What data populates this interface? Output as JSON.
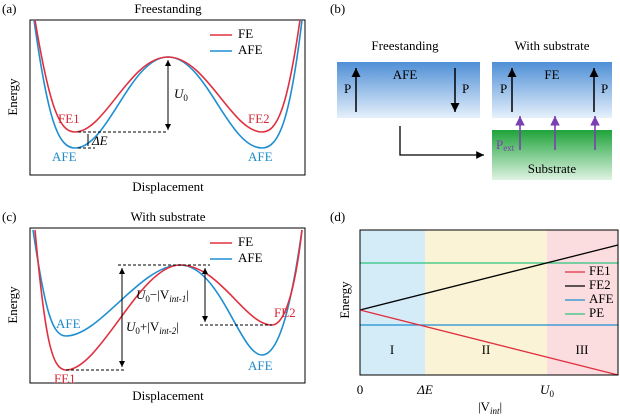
{
  "panel_a": {
    "label": "(a)",
    "title": "Freestanding",
    "legend": [
      "FE",
      "AFE"
    ],
    "well_labels": [
      "FE1",
      "FE2",
      "AFE",
      "AFE"
    ],
    "delta_e": "ΔE",
    "u0": [
      "U",
      "0"
    ],
    "y_label": "Energy",
    "x_label": "Displacement"
  },
  "panel_b": {
    "label": "(b)",
    "left_title": "Freestanding",
    "right_title": "With substrate",
    "left_phase": "AFE",
    "right_phase": "FE",
    "polarization": [
      "P",
      "P",
      "P",
      "P"
    ],
    "p_ext": [
      "P",
      "ext"
    ],
    "substrate": "Substrate"
  },
  "panel_c": {
    "label": "(c)",
    "title": "With substrate",
    "legend": [
      "FE",
      "AFE"
    ],
    "well_labels": [
      "AFE",
      "FE1",
      "FE2",
      "AFE"
    ],
    "barrier_1": [
      "U",
      "0",
      "−|V",
      "int-1",
      "|"
    ],
    "barrier_2": [
      "U",
      "0",
      "+|V",
      "int-2",
      "|"
    ],
    "y_label": "Energy",
    "x_label": "Displacement"
  },
  "panel_d": {
    "label": "(d)",
    "legend": [
      "FE1",
      "FE2",
      "AFE",
      "PE"
    ],
    "regions": [
      "I",
      "II",
      "III"
    ],
    "x_ticks": [
      "0",
      "ΔE",
      [
        "U",
        "0"
      ]
    ],
    "x_label": [
      "|V",
      "int",
      "|"
    ],
    "y_label": "Energy"
  }
}
